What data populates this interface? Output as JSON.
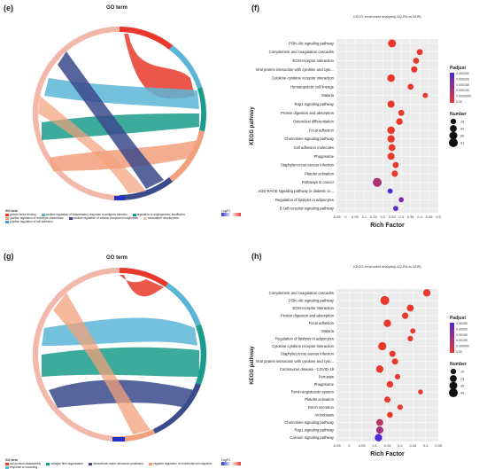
{
  "panels": {
    "e": {
      "label": "(e)",
      "title": "GO term",
      "colorbar_label": "LogFC",
      "legend_head": "GO term",
      "legend_items": [
        {
          "text": "growth factor binding",
          "color": "#e8392c"
        },
        {
          "text": "positive regulation of inflammatory response to antigenic stimulus",
          "color": "#5bb6d6"
        },
        {
          "text": "regulation of angiogenesis, insufficient",
          "color": "#1a9c8a"
        },
        {
          "text": "positive regulation of leukocyte chemotaxis",
          "color": "#f2a07b"
        },
        {
          "text": "positive regulation of cellular component biogenesis",
          "color": "#3b4a8c"
        },
        {
          "text": "vasculature development",
          "color": "#f0c0a0"
        },
        {
          "text": "positive regulation of cell adhesion",
          "color": "#4aa0d0"
        }
      ]
    },
    "g": {
      "label": "(g)",
      "title": "GO term",
      "colorbar_label": "LogFC",
      "legend_head": "GO term",
      "legend_items": [
        {
          "text": "cell junction disassembly",
          "color": "#e8392c"
        },
        {
          "text": "collagen fibril organization",
          "color": "#1a9c8a"
        },
        {
          "text": "extracellular matrix structural constituent",
          "color": "#3b4a8c"
        },
        {
          "text": "negative regulation of endothelial cell migration",
          "color": "#f2a07b"
        },
        {
          "text": "response to wounding",
          "color": "#5bb6d6"
        }
      ]
    },
    "f": {
      "label": "(f)"
    },
    "h": {
      "label": "(h)"
    }
  },
  "chart_data": [
    {
      "panel": "f",
      "type": "scatter",
      "title": "KEGG enrichment analysis(LAQ-RA vs NOR)",
      "xlabel": "Rich Factor",
      "ylabel": "KEGG pathway",
      "xlim": [
        -0.05,
        0.5
      ],
      "xticks": [
        "-0.05",
        "0",
        "0.05",
        "0.1",
        "0.15",
        "0.2",
        "0.25",
        "0.3",
        "0.35",
        "0.4",
        "0.45",
        "0.5"
      ],
      "grid": true,
      "color_legend_title": "Padjust",
      "color_legend_ticks": [
        "0.000250",
        "0.000200",
        "0.000150",
        "0.000100",
        "0.0000500",
        "0.00"
      ],
      "size_legend_title": "Number",
      "size_legend_values": [
        "18",
        "42",
        "66",
        "91"
      ],
      "categories": [
        "PI3K-Akt signaling pathway",
        "Complement and coagulation cascades",
        "ECM-receptor interaction",
        "Viral protein interaction with cytokine and cyto...",
        "Cytokine-cytokine receptor interaction",
        "Hematopoietic cell lineage",
        "Malaria",
        "Rap1 signaling pathway",
        "Protein digestion and absorption",
        "Osteoclast differentiation",
        "Focal adhesion",
        "Chemokine signaling pathway",
        "Cell adhesion molecules",
        "Phagosome",
        "Staphylococcus aureus infection",
        "Platelet activation",
        "Pathways in cancer",
        "AGE-RAGE signaling pathway in diabetic co...",
        "Regulation of lipolysis in adipocytes",
        "B cell receptor signaling pathway"
      ],
      "x": [
        0.25,
        0.4,
        0.38,
        0.37,
        0.245,
        0.35,
        0.43,
        0.245,
        0.3,
        0.29,
        0.245,
        0.245,
        0.25,
        0.245,
        0.27,
        0.265,
        0.17,
        0.24,
        0.3,
        0.27
      ],
      "number": [
        70,
        30,
        30,
        35,
        60,
        30,
        20,
        50,
        32,
        40,
        60,
        55,
        45,
        50,
        30,
        35,
        91,
        18,
        18,
        18
      ],
      "padjust": [
        0.0,
        0.0,
        0.0,
        0.0,
        0.0,
        0.0,
        0.0,
        0.0,
        0.0,
        0.0,
        0.0,
        0.0,
        0.0,
        0.0,
        0.0,
        0.0,
        0.0001,
        0.00025,
        0.00018,
        0.00022
      ]
    },
    {
      "panel": "h",
      "type": "scatter",
      "title": "KEGG enrichment analysis(LAQ-RA vs NOR)",
      "xlabel": "Rich Factor",
      "ylabel": "KEGG pathway",
      "xlim": [
        -0.05,
        0.35
      ],
      "xticks": [
        "-0.05",
        "0",
        "0.05",
        "0.1",
        "0.15",
        "0.2",
        "0.25",
        "0.3",
        "0.35"
      ],
      "grid": true,
      "color_legend_title": "Padjust",
      "color_legend_ticks": [
        "0.00250",
        "0.00200",
        "0.00150",
        "0.00100",
        "0.000500",
        "0.00"
      ],
      "size_legend_title": "Number",
      "size_legend_values": [
        "10",
        "23",
        "36",
        "49"
      ],
      "categories": [
        "Complement and coagulation cascades",
        "PI3K-Akt signaling pathway",
        "ECM-receptor interaction",
        "Protein digestion and absorption",
        "Focal adhesion",
        "Malaria",
        "Regulation of lipolysis in adipocytes",
        "Cytokine-cytokine receptor interaction",
        "Staphylococcus aureus infection",
        "Viral protein interaction with cytokine and cyto...",
        "Coronavirus disease - COVID-19",
        "Pertussis",
        "Phagosome",
        "Renin-angiotensin system",
        "Platelet activation",
        "Renin secretion",
        "Amoebiasis",
        "Chemokine signaling pathway",
        "Rap1 signaling pathway",
        "Calcium signaling pathway"
      ],
      "x": [
        0.305,
        0.14,
        0.24,
        0.22,
        0.15,
        0.25,
        0.24,
        0.13,
        0.17,
        0.18,
        0.12,
        0.19,
        0.16,
        0.28,
        0.15,
        0.2,
        0.16,
        0.12,
        0.12,
        0.115
      ],
      "number": [
        30,
        49,
        25,
        20,
        30,
        10,
        12,
        40,
        18,
        18,
        30,
        12,
        22,
        8,
        18,
        12,
        15,
        25,
        28,
        30
      ],
      "padjust": [
        0.0,
        0.0,
        0.0,
        0.0,
        0.0,
        0.0,
        0.0,
        0.0,
        0.0,
        0.0,
        0.0,
        0.0,
        0.0,
        0.0,
        0.0,
        0.0,
        0.0,
        0.0008,
        0.0012,
        0.0025
      ]
    }
  ]
}
